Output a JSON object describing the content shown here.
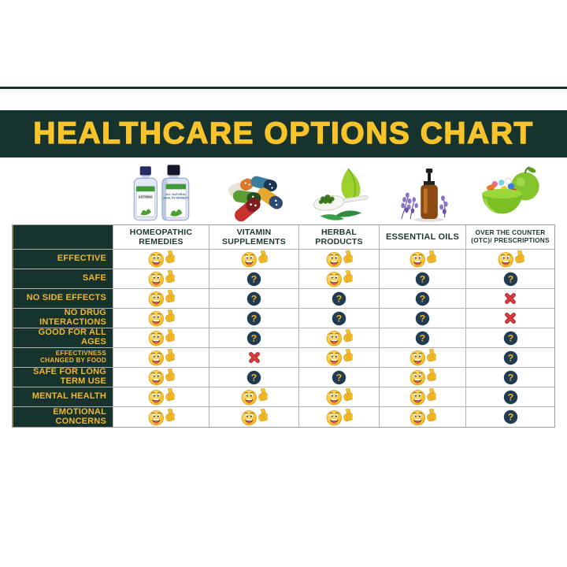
{
  "title": {
    "text": "HEALTHCARE OPTIONS CHART"
  },
  "colors": {
    "banner_green": "#16342d",
    "banner_yellow": "#f9c32b",
    "row_label_yellow": "#f0b62e",
    "header_text": "#1d3833",
    "question_circle_navy": "#203c54",
    "question_mark_gold": "#f2b21e",
    "cross_red": "#dd3d3d",
    "grid_line": "#b3b3b3"
  },
  "images": [
    {
      "name": "homeopathic-remedy-bottles"
    },
    {
      "name": "vitamin-capsules-pile"
    },
    {
      "name": "herbal-leaf-and-spoon"
    },
    {
      "name": "essential-oil-bottle-with-lavender"
    },
    {
      "name": "green-bowl-of-pills-with-apple"
    }
  ],
  "icons": {
    "thumbs_up": "thumbs-up-smiley",
    "question": "question-mark-circle",
    "cross": "red-cross"
  },
  "table": {
    "columns": [
      {
        "label": "HOMEOPATHIC REMEDIES"
      },
      {
        "label": "VITAMIN SUPPLEMENTS"
      },
      {
        "label": "HERBAL PRODUCTS"
      },
      {
        "label": "ESSENTIAL OILS"
      },
      {
        "label": "OVER THE COUNTER (OTC)/ PRESCRIPTIONS"
      }
    ],
    "rows": [
      {
        "label": "EFFECTIVE",
        "small": false,
        "cells": [
          "thumbs_up",
          "thumbs_up",
          "thumbs_up",
          "thumbs_up",
          "thumbs_up"
        ]
      },
      {
        "label": "SAFE",
        "small": false,
        "cells": [
          "thumbs_up",
          "question",
          "thumbs_up",
          "question",
          "question"
        ]
      },
      {
        "label": "NO SIDE EFFECTS",
        "small": false,
        "cells": [
          "thumbs_up",
          "question",
          "question",
          "question",
          "cross"
        ]
      },
      {
        "label": "NO DRUG INTERACTIONS",
        "small": false,
        "cells": [
          "thumbs_up",
          "question",
          "question",
          "question",
          "cross"
        ]
      },
      {
        "label": "GOOD FOR ALL AGES",
        "small": false,
        "cells": [
          "thumbs_up",
          "question",
          "thumbs_up",
          "question",
          "question"
        ]
      },
      {
        "label": "EFFECTIVNESS CHANGED BY FOOD",
        "small": true,
        "cells": [
          "thumbs_up",
          "cross",
          "thumbs_up",
          "thumbs_up",
          "question"
        ]
      },
      {
        "label": "SAFE FOR LONG TERM USE",
        "small": false,
        "cells": [
          "thumbs_up",
          "question",
          "question",
          "thumbs_up",
          "question"
        ]
      },
      {
        "label": "MENTAL HEALTH",
        "small": false,
        "cells": [
          "thumbs_up",
          "thumbs_up",
          "thumbs_up",
          "thumbs_up",
          "question"
        ]
      },
      {
        "label": "EMOTIONAL CONCERNS",
        "small": false,
        "cells": [
          "thumbs_up",
          "thumbs_up",
          "thumbs_up",
          "thumbs_up",
          "question"
        ]
      }
    ]
  },
  "chart_data": {
    "type": "table",
    "title": "HEALTHCARE OPTIONS CHART",
    "columns": [
      "Homeopathic Remedies",
      "Vitamin Supplements",
      "Herbal Products",
      "Essential Oils",
      "Over The Counter (OTC)/ Prescriptions"
    ],
    "rows": [
      "Effective",
      "Safe",
      "No Side Effects",
      "No Drug Interactions",
      "Good For All Ages",
      "Effectivness Changed By Food",
      "Safe For Long Term Use",
      "Mental Health",
      "Emotional Concerns"
    ],
    "values": [
      [
        "thumbs_up",
        "thumbs_up",
        "thumbs_up",
        "thumbs_up",
        "thumbs_up"
      ],
      [
        "thumbs_up",
        "question",
        "thumbs_up",
        "question",
        "question"
      ],
      [
        "thumbs_up",
        "question",
        "question",
        "question",
        "cross"
      ],
      [
        "thumbs_up",
        "question",
        "question",
        "question",
        "cross"
      ],
      [
        "thumbs_up",
        "question",
        "thumbs_up",
        "question",
        "question"
      ],
      [
        "thumbs_up",
        "cross",
        "thumbs_up",
        "thumbs_up",
        "question"
      ],
      [
        "thumbs_up",
        "question",
        "question",
        "thumbs_up",
        "question"
      ],
      [
        "thumbs_up",
        "thumbs_up",
        "thumbs_up",
        "thumbs_up",
        "question"
      ],
      [
        "thumbs_up",
        "thumbs_up",
        "thumbs_up",
        "thumbs_up",
        "question"
      ]
    ],
    "legend": {
      "thumbs_up": "positive / yes",
      "question": "uncertain",
      "cross": "no"
    }
  }
}
